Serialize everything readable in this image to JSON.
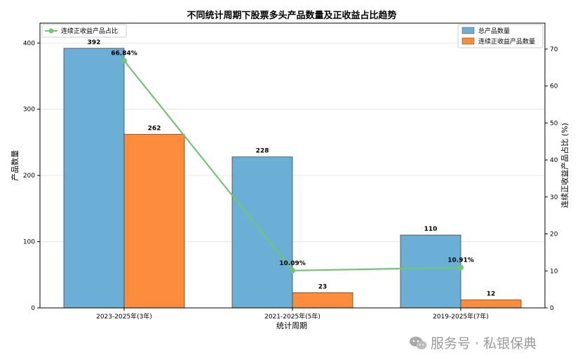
{
  "chart_data": {
    "type": "bar",
    "title": "不同统计周期下股票多头产品数量及正收益占比趋势",
    "xlabel": "统计周期",
    "ylabel": "产品数量",
    "y2label": "连续正收益产品占比 (%)",
    "categories": [
      "2023-2025年(3年)",
      "2021-2025年(5年)",
      "2019-2025年(7年)"
    ],
    "ylim": [
      0,
      430
    ],
    "y2lim": [
      0,
      77
    ],
    "yticks": [
      0,
      100,
      200,
      300,
      400
    ],
    "y2ticks": [
      0,
      10,
      20,
      30,
      40,
      50,
      60,
      70
    ],
    "grid": true,
    "series": [
      {
        "name": "总产品数量",
        "type": "bar",
        "axis": "left",
        "color": "#6baed6",
        "values": [
          392,
          228,
          110
        ],
        "labels": [
          "392",
          "228",
          "110"
        ]
      },
      {
        "name": "连续正收益产品数量",
        "type": "bar",
        "axis": "left",
        "color": "#fd8d3c",
        "values": [
          262,
          23,
          12
        ],
        "labels": [
          "262",
          "23",
          "12"
        ]
      },
      {
        "name": "连续正收益产品占比",
        "type": "line",
        "axis": "right",
        "color": "#74c476",
        "values": [
          66.84,
          10.09,
          10.91
        ],
        "labels": [
          "66.84%",
          "10.09%",
          "10.91%"
        ]
      }
    ],
    "legend_left": {
      "position": "top-left"
    },
    "legend_right": {
      "position": "top-right"
    }
  },
  "watermark": {
    "text": "服务号 · 私银保典",
    "icon": "wechat-icon"
  }
}
